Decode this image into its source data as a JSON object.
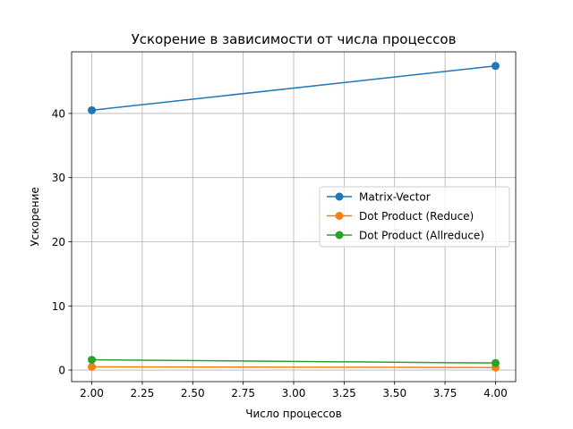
{
  "chart_data": {
    "type": "line",
    "title": "Ускорение в зависимости от числа процессов",
    "xlabel": "Число процессов",
    "ylabel": "Ускорение",
    "xlim": [
      1.9,
      4.1
    ],
    "ylim": [
      -1.8,
      49.6
    ],
    "xticks": [
      2.0,
      2.25,
      2.5,
      2.75,
      3.0,
      3.25,
      3.5,
      3.75,
      4.0
    ],
    "xtick_labels": [
      "2.00",
      "2.25",
      "2.50",
      "2.75",
      "3.00",
      "3.25",
      "3.50",
      "3.75",
      "4.00"
    ],
    "yticks": [
      0,
      10,
      20,
      30,
      40
    ],
    "ytick_labels": [
      "0",
      "10",
      "20",
      "30",
      "40"
    ],
    "grid": true,
    "legend_position": "center-right",
    "series": [
      {
        "name": "Matrix-Vector",
        "color": "#1f77b4",
        "x": [
          2,
          4
        ],
        "y": [
          40.5,
          47.4
        ]
      },
      {
        "name": "Dot Product (Reduce)",
        "color": "#ff7f0e",
        "x": [
          2,
          4
        ],
        "y": [
          0.5,
          0.4
        ]
      },
      {
        "name": "Dot Product (Allreduce)",
        "color": "#2ca02c",
        "x": [
          2,
          4
        ],
        "y": [
          1.6,
          1.1
        ]
      }
    ]
  }
}
